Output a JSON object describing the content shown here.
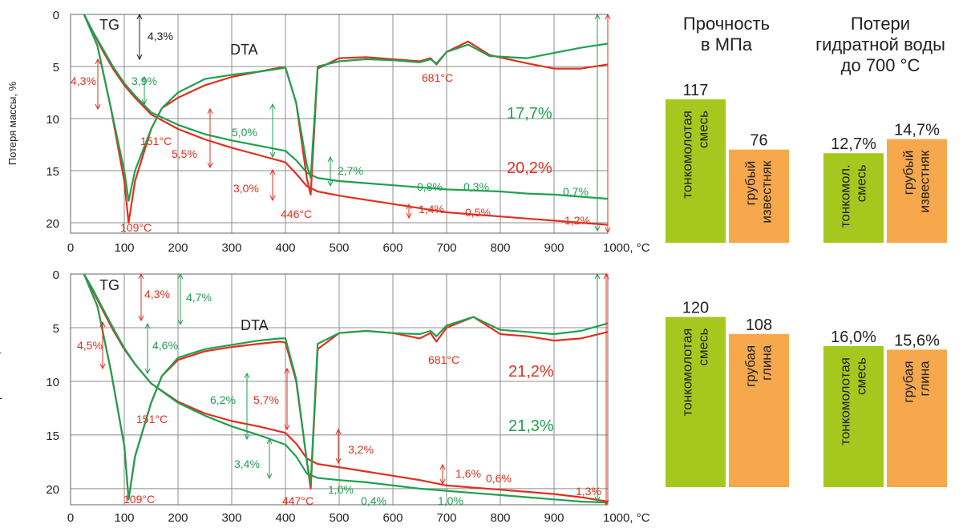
{
  "colors": {
    "red": "#e0301e",
    "green": "#20a050",
    "dark": "#222222",
    "bar_green": "#a6c81e",
    "bar_orange": "#f7a84c",
    "grid": "#8c8c8c"
  },
  "headers": {
    "strength": [
      "Прочность",
      "в МПа"
    ],
    "water_loss": [
      "Потери",
      "гидратной воды",
      "до 700 °С"
    ]
  },
  "chart_data": [
    {
      "type": "line",
      "ylabel": "Потеря массы, %",
      "xlim": [
        0,
        1000
      ],
      "ylim": [
        0,
        21
      ],
      "x_ticks": [
        "0",
        "100",
        "200",
        "300",
        "400",
        "500",
        "600",
        "700",
        "800",
        "900",
        "1000, °C"
      ],
      "y_ticks": [
        "0",
        "5",
        "10",
        "15",
        "20"
      ],
      "grid": true,
      "series": [
        {
          "color": "red",
          "x": [
            25,
            40,
            60,
            80,
            100,
            120,
            150,
            200,
            250,
            300,
            350,
            400,
            420,
            440,
            460,
            500,
            550,
            600,
            650,
            700,
            750,
            800,
            850,
            900,
            950,
            1000
          ],
          "y": [
            0,
            1.5,
            3.5,
            5.3,
            6.8,
            8,
            9.6,
            11,
            12,
            12.8,
            13.5,
            14.2,
            15.3,
            16.5,
            17,
            17.4,
            17.8,
            18.2,
            18.6,
            19,
            19.2,
            19.4,
            19.6,
            19.8,
            20,
            20.2
          ]
        },
        {
          "color": "green",
          "x": [
            25,
            40,
            60,
            80,
            100,
            120,
            150,
            200,
            250,
            300,
            350,
            400,
            420,
            440,
            460,
            500,
            550,
            600,
            650,
            700,
            750,
            800,
            850,
            900,
            950,
            1000
          ],
          "y": [
            0,
            1.5,
            3.3,
            5.1,
            6.6,
            7.8,
            9.4,
            10.6,
            11.5,
            12.1,
            12.6,
            13.1,
            14,
            15.2,
            15.7,
            16,
            16.2,
            16.4,
            16.6,
            16.8,
            16.9,
            17,
            17.2,
            17.3,
            17.5,
            17.7
          ]
        },
        {
          "color": "red",
          "x": [
            25,
            50,
            75,
            100,
            108,
            120,
            150,
            170,
            200,
            250,
            300,
            350,
            390,
            400,
            420,
            440,
            447,
            460,
            500,
            550,
            600,
            650,
            670,
            681,
            700,
            740,
            780,
            850,
            900,
            950,
            1000
          ],
          "y": [
            0,
            3,
            9,
            16,
            20,
            16,
            11,
            9,
            8,
            6.8,
            6,
            5.5,
            5.1,
            5.1,
            8.5,
            15.8,
            17.3,
            5.2,
            4.2,
            4.1,
            4.3,
            4.5,
            4.2,
            4.8,
            3.6,
            2.6,
            3.9,
            4.7,
            5.2,
            5.2,
            4.8
          ]
        },
        {
          "color": "green",
          "x": [
            25,
            50,
            75,
            100,
            108,
            120,
            150,
            170,
            200,
            250,
            300,
            350,
            390,
            400,
            420,
            440,
            447,
            460,
            500,
            550,
            600,
            650,
            670,
            681,
            700,
            740,
            780,
            850,
            900,
            950,
            1000
          ],
          "y": [
            0,
            3,
            9,
            15,
            17.9,
            15,
            11,
            9,
            7.5,
            6.2,
            5.8,
            5.5,
            5.2,
            5.1,
            8.5,
            14.5,
            15.7,
            5,
            4.5,
            4.3,
            4.4,
            4.6,
            4.3,
            4.7,
            3.6,
            2.9,
            4,
            4.2,
            3.7,
            3.2,
            2.8
          ]
        }
      ],
      "annotations": [
        "TG",
        "DTA",
        "4,3%",
        "4,3%",
        "3,9%",
        "151°C",
        "109°C",
        "5,5%",
        "5,0%",
        "3,0%",
        "446°C",
        "2,7%",
        "0,8%",
        "0,3%",
        "1,4%",
        "0,5%",
        "0,7%",
        "1,2%",
        "681°C",
        "17,7%",
        "20,2%"
      ]
    },
    {
      "type": "line",
      "ylabel": "Потеря массы, %",
      "xlim": [
        0,
        1000
      ],
      "ylim": [
        0,
        21.5
      ],
      "x_ticks": [
        "0",
        "100",
        "200",
        "300",
        "400",
        "500",
        "600",
        "700",
        "800",
        "900",
        "1000, °C"
      ],
      "y_ticks": [
        "0",
        "5",
        "10",
        "15",
        "20"
      ],
      "grid": true,
      "series": [
        {
          "color": "red",
          "x": [
            25,
            40,
            60,
            80,
            100,
            120,
            150,
            200,
            250,
            300,
            350,
            400,
            420,
            440,
            460,
            500,
            550,
            600,
            650,
            700,
            750,
            800,
            850,
            900,
            950,
            1000
          ],
          "y": [
            0,
            1.4,
            3.4,
            5.3,
            7,
            8.4,
            10.2,
            11.9,
            13,
            13.7,
            14.2,
            14.8,
            15.8,
            17.2,
            17.7,
            18,
            18.4,
            18.8,
            19.2,
            19.7,
            19.9,
            20.1,
            20.3,
            20.5,
            20.8,
            21.2
          ]
        },
        {
          "color": "green",
          "x": [
            25,
            40,
            60,
            80,
            100,
            120,
            150,
            200,
            250,
            300,
            350,
            400,
            420,
            440,
            460,
            500,
            550,
            600,
            650,
            700,
            750,
            800,
            850,
            900,
            950,
            1000
          ],
          "y": [
            0,
            1.3,
            3.2,
            5.1,
            6.9,
            8.4,
            10.2,
            12,
            13.2,
            14.2,
            15,
            15.9,
            17,
            18.6,
            19,
            19.2,
            19.4,
            19.7,
            20,
            20.2,
            20.4,
            20.6,
            20.8,
            21,
            21.2,
            21.3
          ]
        },
        {
          "color": "red",
          "x": [
            25,
            50,
            75,
            100,
            108,
            120,
            150,
            170,
            200,
            250,
            300,
            350,
            390,
            400,
            420,
            440,
            447,
            460,
            500,
            550,
            600,
            650,
            670,
            681,
            700,
            750,
            800,
            850,
            900,
            950,
            1000
          ],
          "y": [
            0,
            3,
            9,
            16,
            21,
            17,
            12,
            9.5,
            8,
            7.2,
            6.8,
            6.5,
            6.3,
            6.4,
            10,
            17.5,
            20,
            7,
            5.5,
            5.3,
            5.5,
            6,
            5.5,
            6.3,
            5,
            4,
            5.6,
            5.8,
            6.2,
            6,
            5.4
          ]
        },
        {
          "color": "green",
          "x": [
            25,
            50,
            75,
            100,
            108,
            120,
            150,
            170,
            200,
            250,
            300,
            350,
            390,
            400,
            420,
            440,
            447,
            460,
            500,
            550,
            600,
            650,
            670,
            681,
            700,
            750,
            800,
            850,
            900,
            950,
            1000
          ],
          "y": [
            0,
            3,
            9,
            16,
            21,
            17,
            12,
            9.5,
            7.8,
            7,
            6.6,
            6.2,
            6,
            6,
            9.8,
            17.5,
            19.5,
            6.5,
            5.5,
            5.3,
            5.5,
            5.6,
            5.3,
            5.8,
            4.8,
            4,
            5.2,
            5.4,
            5.6,
            5.3,
            4.6
          ]
        }
      ],
      "annotations": [
        "TG",
        "DTA",
        "4,3%",
        "4,7%",
        "4,5%",
        "4,6%",
        "151°C",
        "109°C",
        "6,2%",
        "5,7%",
        "3,4%",
        "447°C",
        "3,2%",
        "1,6%",
        "0,6%",
        "1,0%",
        "0,4%",
        "1,0%",
        "1,3%",
        "681°C",
        "21,2%",
        "21,3%"
      ]
    },
    {
      "type": "bar",
      "title": "Прочность в МПа",
      "categories": [
        "тонкомолотая смесь",
        "грубый известняк"
      ],
      "values": [
        117,
        76
      ],
      "value_labels": [
        "117",
        "76"
      ]
    },
    {
      "type": "bar",
      "title": "Потери гидратной воды до 700 °С",
      "categories": [
        "тонкомол. смесь",
        "грубый известняк"
      ],
      "values": [
        12.7,
        14.7
      ],
      "value_labels": [
        "12,7%",
        "14,7%"
      ]
    },
    {
      "type": "bar",
      "categories": [
        "тонкомолотая смесь",
        "грубая глина"
      ],
      "values": [
        120,
        108
      ],
      "value_labels": [
        "120",
        "108"
      ]
    },
    {
      "type": "bar",
      "categories": [
        "тонкомолотая смесь",
        "грубая глина"
      ],
      "values": [
        16.0,
        15.6
      ],
      "value_labels": [
        "16,0%",
        "15,6%"
      ]
    }
  ]
}
